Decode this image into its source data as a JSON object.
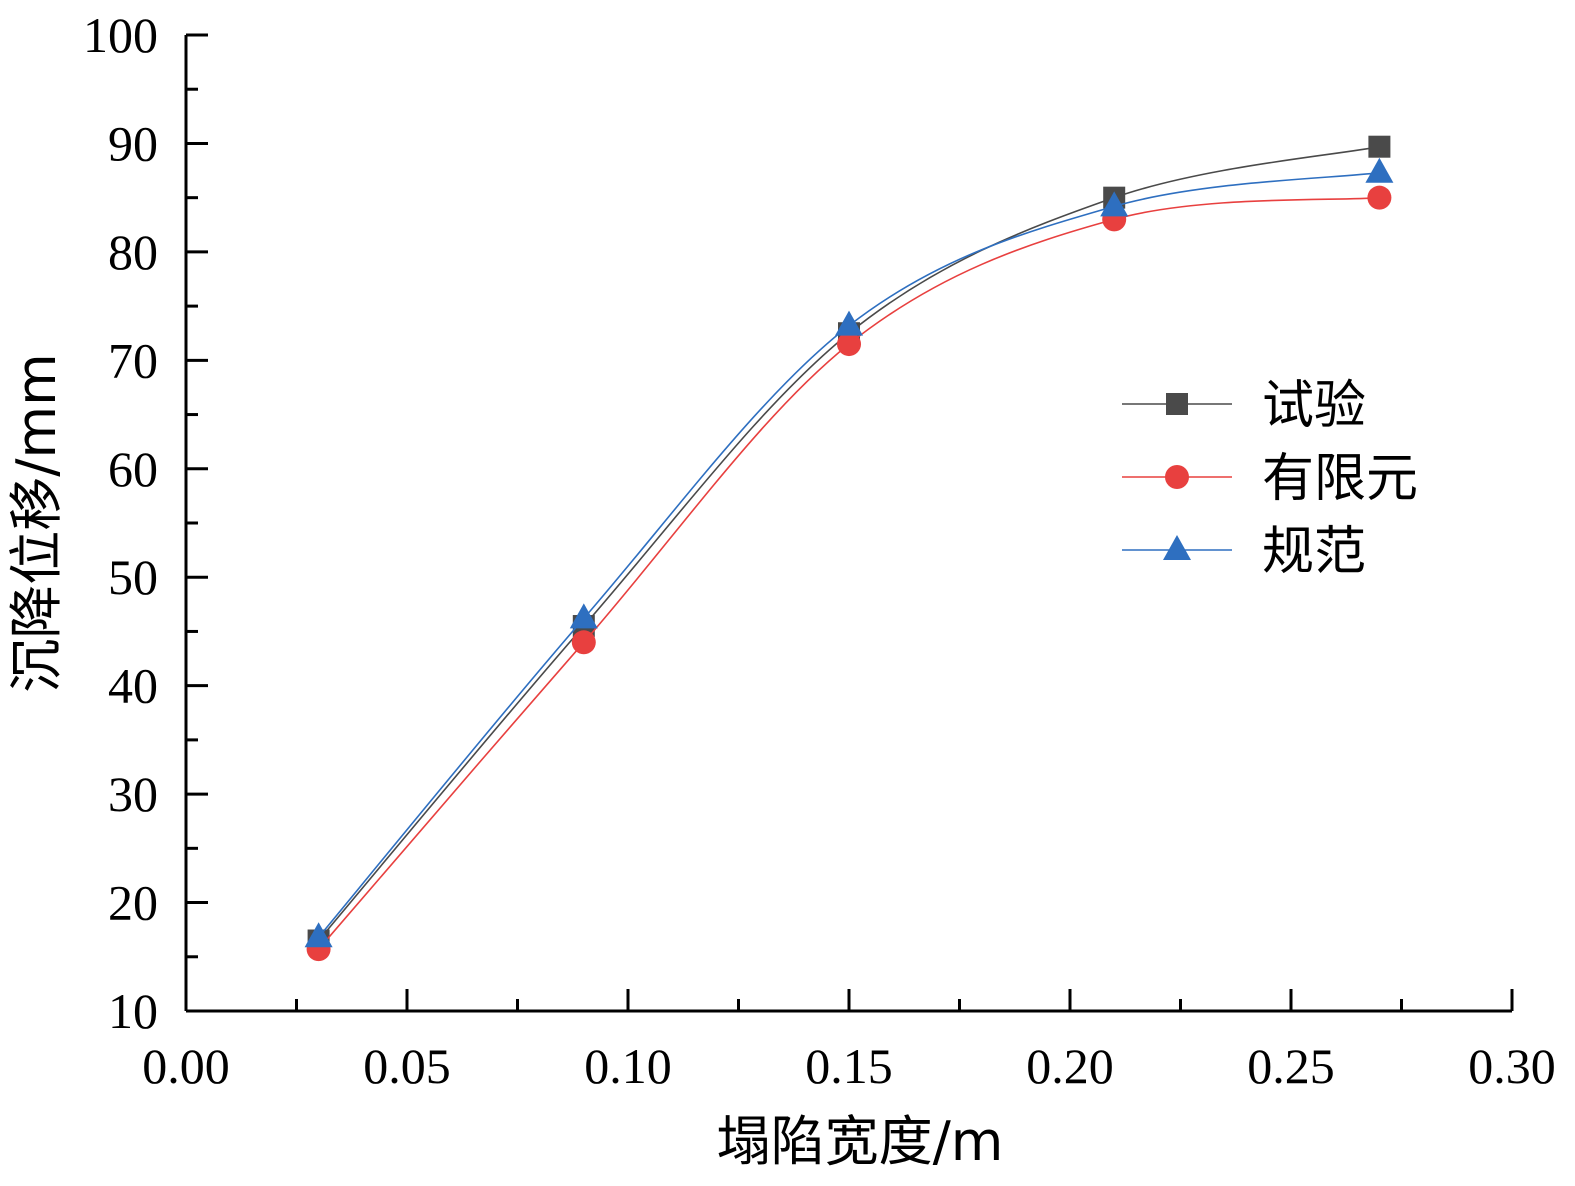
{
  "chart_data": {
    "type": "line",
    "xlabel": "塌陷宽度/m",
    "ylabel": "沉降位移/mm",
    "xlim": [
      0.0,
      0.3
    ],
    "ylim": [
      10,
      100
    ],
    "x_ticks": [
      "0.00",
      "0.05",
      "0.10",
      "0.15",
      "0.20",
      "0.25",
      "0.30"
    ],
    "y_ticks": [
      "10",
      "20",
      "30",
      "40",
      "50",
      "60",
      "70",
      "80",
      "90",
      "100"
    ],
    "x": [
      0.03,
      0.09,
      0.15,
      0.21,
      0.27
    ],
    "series": [
      {
        "name": "试验",
        "values": [
          16.5,
          45.5,
          72.5,
          85.0,
          89.7
        ],
        "color": "#4a4a4a",
        "marker": "square"
      },
      {
        "name": "有限元",
        "values": [
          15.7,
          44.0,
          71.5,
          83.0,
          85.0
        ],
        "color": "#e8403f",
        "marker": "circle"
      },
      {
        "name": "规范",
        "values": [
          16.8,
          46.2,
          73.2,
          84.2,
          87.3
        ],
        "color": "#2e6fc0",
        "marker": "triangle"
      }
    ],
    "grid": false,
    "legend_position": "right"
  }
}
